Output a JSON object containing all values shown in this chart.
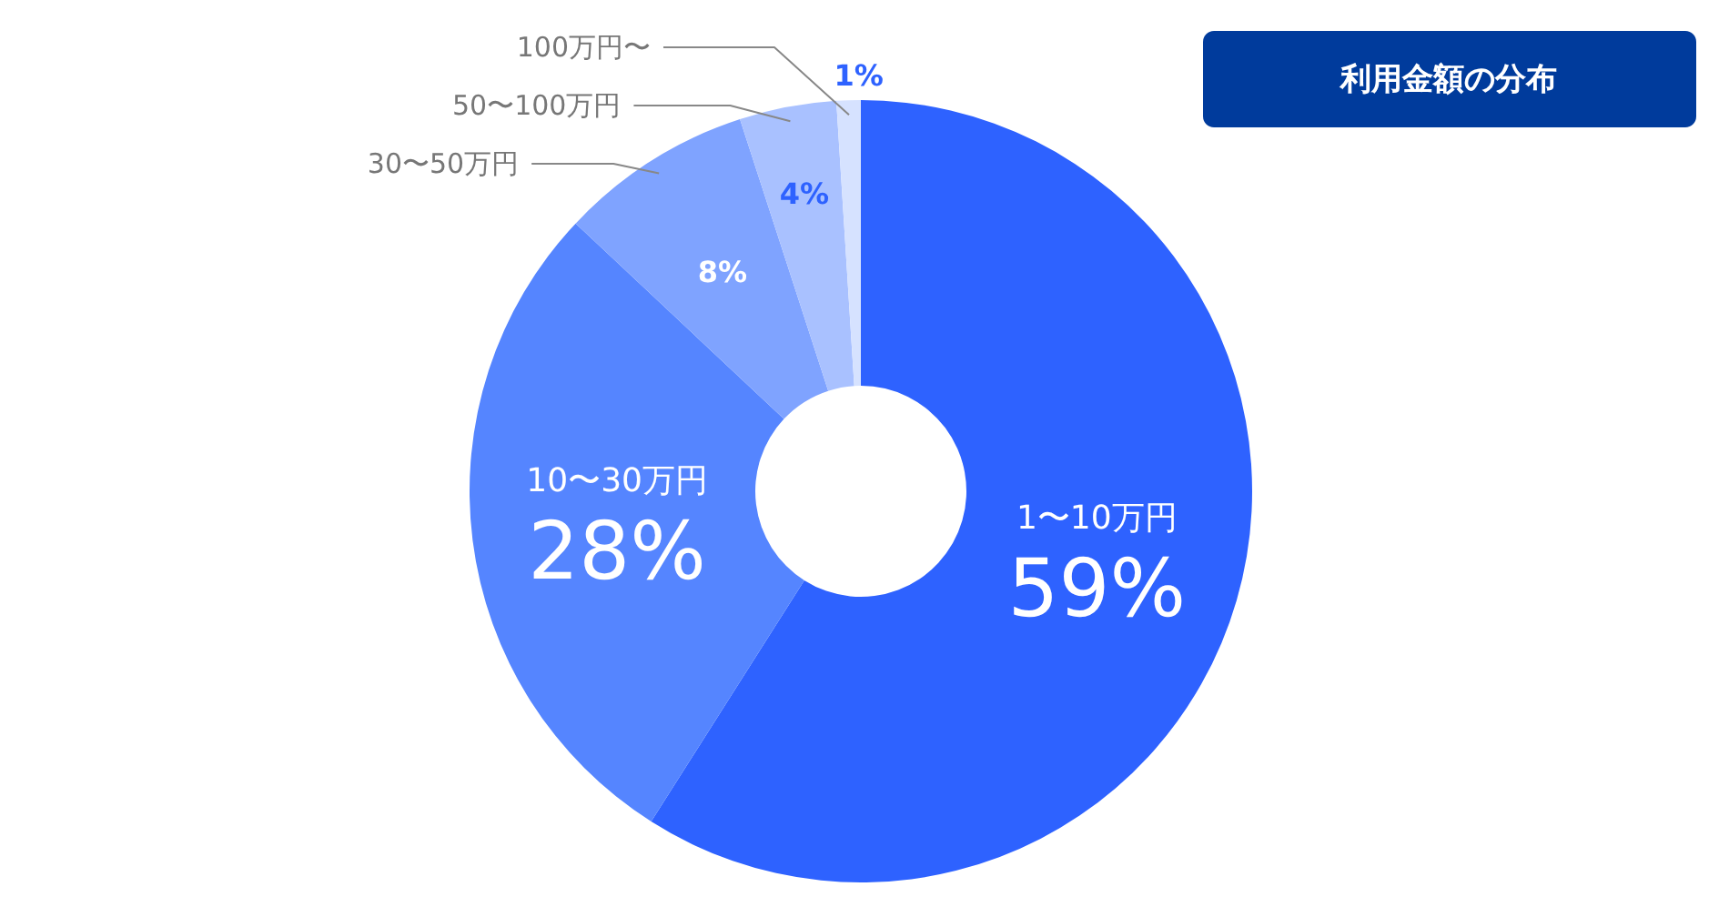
{
  "chart_data": {
    "type": "donut",
    "title": "利用金額の分布",
    "categories": [
      "1〜10万円",
      "10〜30万円",
      "30〜50万円",
      "50〜100万円",
      "100万円〜"
    ],
    "values": [
      59,
      28,
      8,
      4,
      1
    ],
    "colors": [
      "#2e62ff",
      "#5585ff",
      "#7fa3ff",
      "#a9c1ff",
      "#d6e2ff"
    ],
    "value_labels": [
      "59%",
      "28%",
      "8%",
      "4%",
      "1%"
    ]
  }
}
